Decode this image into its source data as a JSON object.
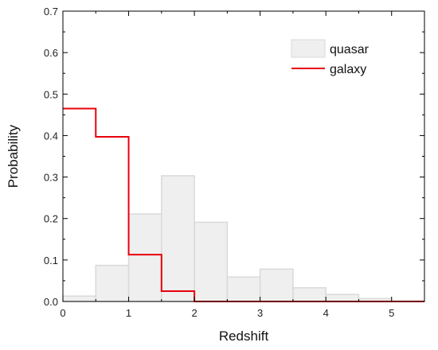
{
  "chart_data": {
    "type": "bar",
    "title": "",
    "xlabel": "Redshift",
    "ylabel": "Probability",
    "xlim": [
      0,
      5.5
    ],
    "ylim": [
      0,
      0.7
    ],
    "xticks": [
      0,
      1,
      2,
      3,
      4,
      5
    ],
    "yticks": [
      0.0,
      0.1,
      0.2,
      0.3,
      0.4,
      0.5,
      0.6,
      0.7
    ],
    "ytick_labels": [
      "0.0",
      "0.1",
      "0.2",
      "0.3",
      "0.4",
      "0.5",
      "0.6",
      "0.7"
    ],
    "bin_edges": [
      0,
      0.5,
      1,
      1.5,
      2,
      2.5,
      3,
      3.5,
      4,
      4.5,
      5,
      5.5
    ],
    "grid": false,
    "legend_position": "top-right",
    "series": [
      {
        "name": "quasar",
        "style": "filled-histogram",
        "color": "#efefef",
        "edge_color": "#d9d9d9",
        "values": [
          0.013,
          0.087,
          0.211,
          0.303,
          0.191,
          0.059,
          0.078,
          0.033,
          0.017,
          0.007,
          0.001
        ]
      },
      {
        "name": "galaxy",
        "style": "step",
        "color": "#e8000b",
        "values": [
          0.465,
          0.397,
          0.113,
          0.025,
          0.0,
          0.0,
          0.0,
          0.0,
          0.0,
          0.0,
          0.0
        ]
      }
    ]
  }
}
